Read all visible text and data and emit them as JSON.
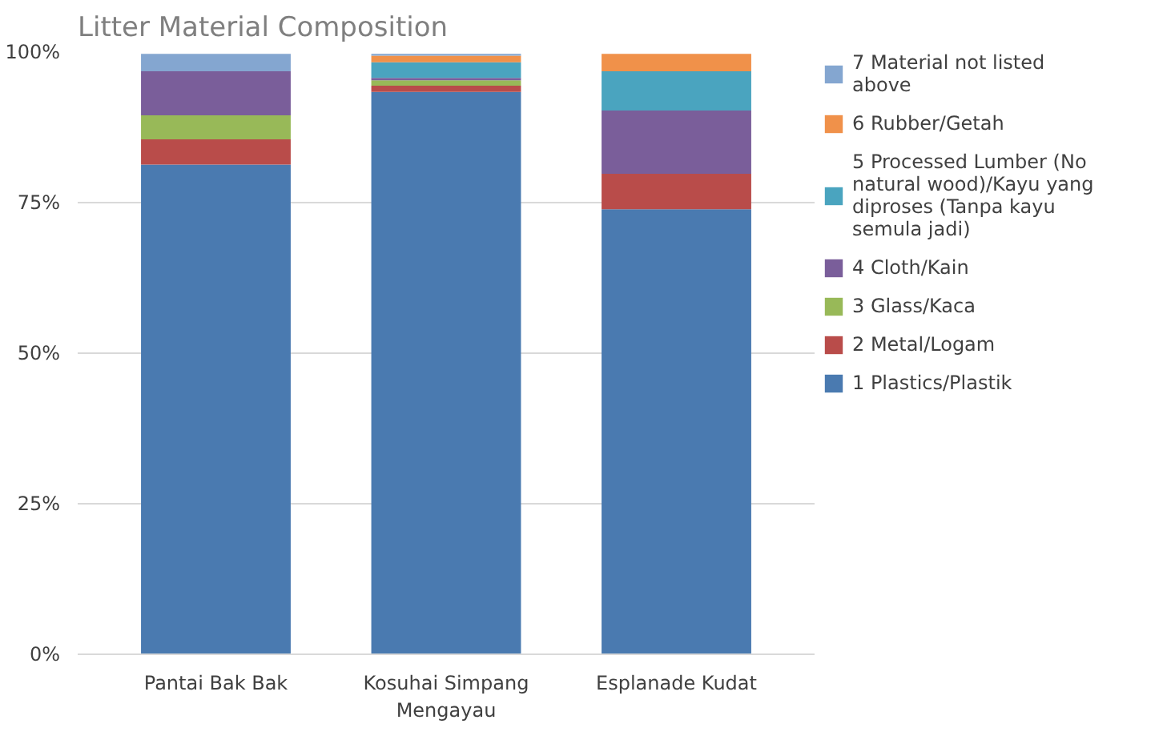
{
  "chart_data": {
    "type": "bar",
    "title": "Litter Material Composition",
    "stacked": true,
    "categories": [
      "Pantai Bak Bak",
      "Kosuhai Simpang Mengayau",
      "Esplanade Kudat"
    ],
    "series": [
      {
        "name": "1 Plastics/Plastik",
        "color": "#4a7ab0",
        "values": [
          81.3,
          93.4,
          73.9
        ]
      },
      {
        "name": "2 Metal/Logam",
        "color": "#b94c4a",
        "values": [
          4.2,
          1.0,
          5.9
        ]
      },
      {
        "name": "3 Glass/Kaca",
        "color": "#98b958",
        "values": [
          4.0,
          0.9,
          0
        ]
      },
      {
        "name": "4 Cloth/Kain",
        "color": "#7a5e9a",
        "values": [
          7.3,
          0.4,
          10.5
        ]
      },
      {
        "name": "5 Processed Lumber (No natural wood)/Kayu yang diproses (Tanpa kayu semula jadi)",
        "color": "#4aa4bf",
        "values": [
          0,
          2.6,
          6.5
        ]
      },
      {
        "name": "6 Rubber/Getah",
        "color": "#f0914a",
        "values": [
          0,
          1.1,
          2.9
        ]
      },
      {
        "name": "7 Material not listed above",
        "color": "#84a6d0",
        "values": [
          2.9,
          0.3,
          0
        ]
      }
    ],
    "ylim": [
      0,
      100
    ],
    "yticks": [
      {
        "value": 0,
        "label": "0%"
      },
      {
        "value": 25,
        "label": "25%"
      },
      {
        "value": 50,
        "label": "50%"
      },
      {
        "value": 75,
        "label": "75%"
      },
      {
        "value": 100,
        "label": "100%"
      }
    ],
    "grid": "y",
    "legend": "right"
  }
}
